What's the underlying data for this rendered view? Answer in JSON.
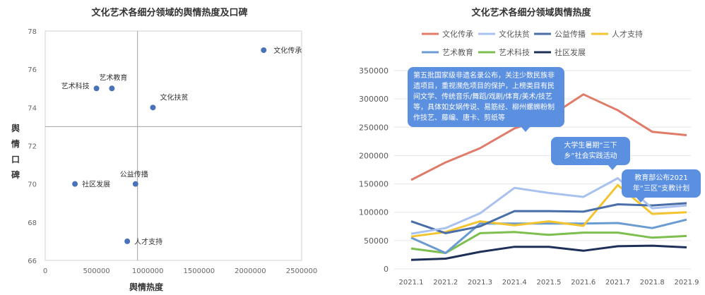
{
  "chart_data": [
    {
      "type": "scatter",
      "title": "文化艺术各细分领域的舆情热度及口碑",
      "xlabel": "舆情热度",
      "ylabel": "舆情口碑",
      "xlim": [
        0,
        2500000
      ],
      "ylim": [
        66,
        78
      ],
      "x_ticks": [
        "0",
        "500000",
        "1000000",
        "1500000",
        "2000000",
        "2500000"
      ],
      "y_ticks": [
        "66",
        "68",
        "70",
        "72",
        "74",
        "76",
        "78"
      ],
      "quadrant_lines": {
        "x": 900000,
        "y": 73
      },
      "grid": false,
      "points": [
        {
          "name": "文化传承",
          "x": 2130000,
          "y": 77
        },
        {
          "name": "艺术科技",
          "x": 500000,
          "y": 75
        },
        {
          "name": "艺术教育",
          "x": 650000,
          "y": 75
        },
        {
          "name": "文化扶贫",
          "x": 1050000,
          "y": 74
        },
        {
          "name": "社区发展",
          "x": 290000,
          "y": 70
        },
        {
          "name": "公益传播",
          "x": 880000,
          "y": 70
        },
        {
          "name": "人才支持",
          "x": 800000,
          "y": 67
        }
      ],
      "point_color": "#4a72b8"
    },
    {
      "type": "line",
      "title": "文化艺术各细分领域舆情热度",
      "categories": [
        "2021.1",
        "2021.2",
        "2021.3",
        "2021.4",
        "2021.5",
        "2021.6",
        "2021.7",
        "2021.8",
        "2021.9"
      ],
      "ylim": [
        0,
        350000
      ],
      "y_ticks": [
        "0",
        "50000",
        "100000",
        "150000",
        "200000",
        "250000",
        "300000",
        "350000"
      ],
      "grid": true,
      "legend_position": "top",
      "series": [
        {
          "name": "文化传承",
          "color": "#e07b6a",
          "values": [
            157000,
            188000,
            213000,
            248000,
            268000,
            308000,
            280000,
            242000,
            236000
          ]
        },
        {
          "name": "文化扶贫",
          "color": "#a8c1ee",
          "values": [
            62000,
            72000,
            98000,
            143000,
            134000,
            127000,
            160000,
            107000,
            112000
          ]
        },
        {
          "name": "公益传播",
          "color": "#4a6fa8",
          "values": [
            84000,
            63000,
            75000,
            102000,
            102000,
            101000,
            114000,
            112000,
            116000
          ]
        },
        {
          "name": "人才支持",
          "color": "#f2c530",
          "values": [
            57000,
            65000,
            84000,
            77000,
            84000,
            76000,
            148000,
            97000,
            100000
          ]
        },
        {
          "name": "艺术教育",
          "color": "#6a9bd1",
          "values": [
            55000,
            28000,
            80000,
            80000,
            80000,
            80000,
            81000,
            72000,
            87000
          ]
        },
        {
          "name": "艺术科技",
          "color": "#7cbf4f",
          "values": [
            36000,
            28000,
            63000,
            65000,
            60000,
            64000,
            64000,
            55000,
            58000
          ]
        },
        {
          "name": "社区发展",
          "color": "#1e2f58",
          "values": [
            16000,
            18000,
            30000,
            39000,
            39000,
            32000,
            40000,
            41000,
            38000
          ]
        }
      ],
      "annotations": [
        {
          "text": "第五批国家级非遗名录公布，关注少数民族非遗项目，重视濒危项目的保护，上榜类目有民间文学、传统音乐/舞蹈/戏剧/体育/美术/技艺等，具体如女娲传说、易筋经、柳州螺蛳粉制作技艺、藤编、唐卡、剪纸等"
        },
        {
          "text": "大学生暑期“三下乡”社会实践活动"
        },
        {
          "text": "教育部公布2021年“三区”支教计划"
        }
      ]
    }
  ]
}
